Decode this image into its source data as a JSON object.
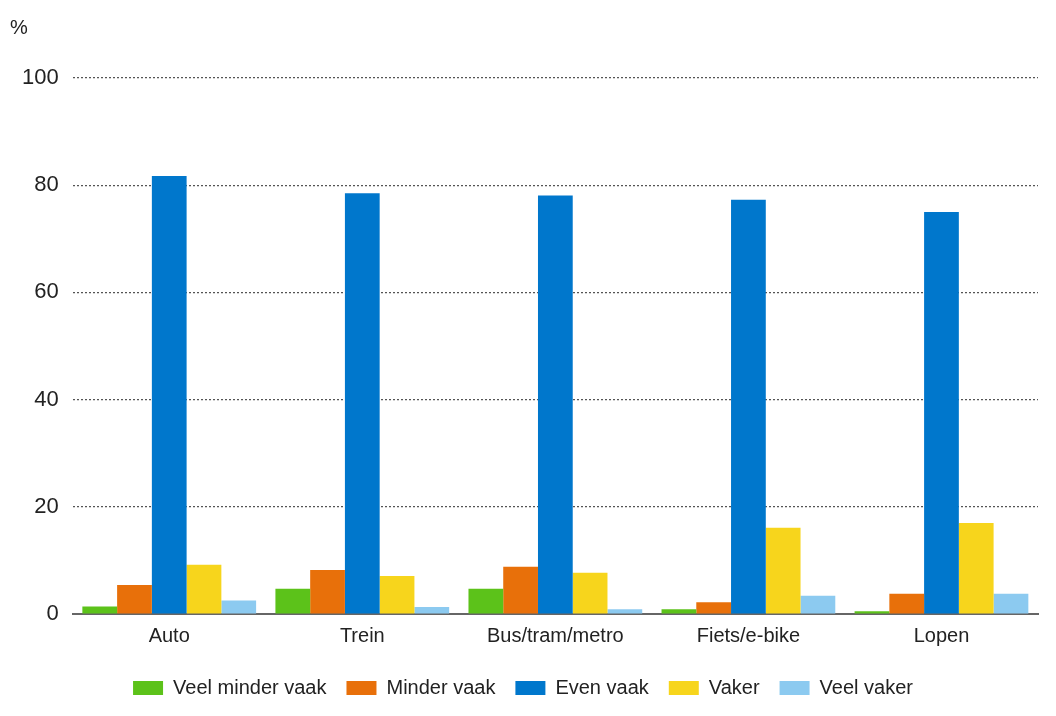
{
  "chart_data": {
    "type": "bar",
    "ylabel": "%",
    "categories": [
      "Auto",
      "Trein",
      "Bus/tram/metro",
      "Fiets/e-bike",
      "Lopen"
    ],
    "series": [
      {
        "name": "Veel minder vaak",
        "color": "#5cc21a",
        "values": [
          1.4,
          4.7,
          4.7,
          0.9,
          0.5
        ]
      },
      {
        "name": "Minder vaak",
        "color": "#e8700a",
        "values": [
          5.4,
          8.2,
          8.8,
          2.2,
          3.8
        ]
      },
      {
        "name": "Even vaak",
        "color": "#0077cc",
        "values": [
          81.7,
          78.5,
          78.1,
          77.3,
          75.0
        ]
      },
      {
        "name": "Vaker",
        "color": "#f7d51c",
        "values": [
          9.2,
          7.1,
          7.7,
          16.1,
          17.0
        ]
      },
      {
        "name": "Veel vaker",
        "color": "#8ccaf0",
        "values": [
          2.5,
          1.3,
          0.9,
          3.4,
          3.8
        ]
      }
    ],
    "ylim": [
      0,
      100
    ],
    "yticks": [
      0,
      20,
      40,
      60,
      80,
      100
    ],
    "grid": "y",
    "legend": "bottom"
  }
}
